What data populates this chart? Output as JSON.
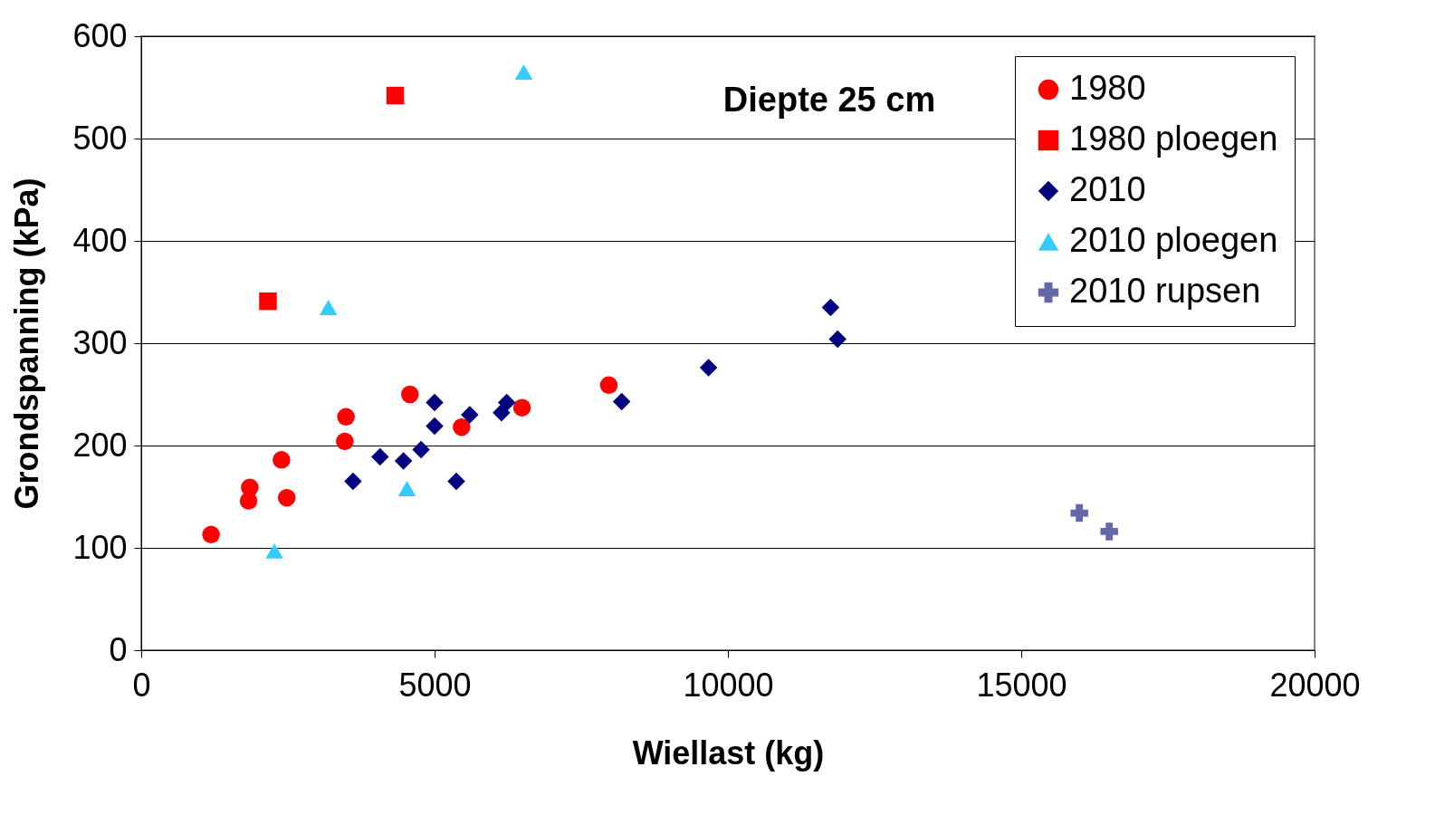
{
  "chart_data": {
    "type": "scatter",
    "xlabel": "Wiellast (kg)",
    "ylabel": "Grondspanning (kPa)",
    "annotations": [
      "Diepte 25 cm"
    ],
    "xlim": [
      0,
      20000
    ],
    "xticks": [
      0,
      5000,
      10000,
      15000,
      20000
    ],
    "ylim": [
      0,
      600
    ],
    "yticks": [
      0,
      100,
      200,
      300,
      400,
      500,
      600
    ],
    "grid": "y",
    "legend": "top right",
    "series": [
      {
        "name": "1980",
        "color": "#ff0000",
        "marker": "circle",
        "x": [
          1190,
          1850,
          1830,
          2390,
          2480,
          3470,
          3490,
          4580,
          5460,
          6490,
          7970
        ],
        "values": [
          113,
          159,
          146,
          186,
          149,
          204,
          228,
          250,
          218,
          237,
          259
        ]
      },
      {
        "name": "1980 ploegen",
        "color": "#ff0000",
        "marker": "square",
        "x": [
          2160,
          4330
        ],
        "values": [
          341,
          542
        ]
      },
      {
        "name": "2010",
        "color": "#000080",
        "marker": "diamond",
        "x": [
          3610,
          4070,
          4470,
          4770,
          5000,
          5000,
          5370,
          5600,
          6140,
          6230,
          8190,
          9670,
          11750,
          11870
        ],
        "values": [
          165,
          189,
          185,
          196,
          242,
          219,
          165,
          230,
          232,
          242,
          243,
          276,
          335,
          304
        ]
      },
      {
        "name": "2010 ploegen",
        "color": "#33ccff",
        "marker": "triangle",
        "x": [
          2270,
          3190,
          4530,
          6520
        ],
        "values": [
          97,
          335,
          158,
          565
        ]
      },
      {
        "name": "2010 rupsen",
        "color": "#6666aa",
        "marker": "cross",
        "x": [
          15990,
          16500
        ],
        "values": [
          134,
          116
        ]
      }
    ]
  }
}
